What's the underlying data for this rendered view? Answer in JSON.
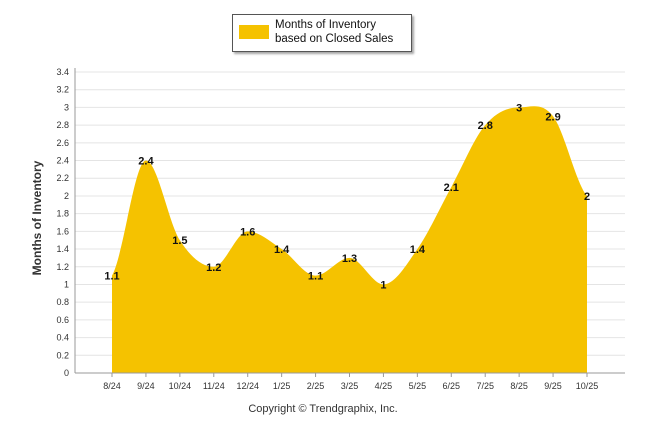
{
  "chart_data": {
    "type": "area",
    "title": "",
    "legend": {
      "label": "Months of Inventory based on Closed Sales",
      "placement": "top-center"
    },
    "categories": [
      "8/24",
      "9/24",
      "10/24",
      "11/24",
      "12/24",
      "1/25",
      "2/25",
      "3/25",
      "4/25",
      "5/25",
      "6/25",
      "7/25",
      "8/25",
      "9/25",
      "10/25"
    ],
    "series": [
      {
        "name": "Months of Inventory based on Closed Sales",
        "values": [
          1.1,
          2.4,
          1.5,
          1.2,
          1.6,
          1.4,
          1.1,
          1.3,
          1,
          1.4,
          2.1,
          2.8,
          3,
          2.9,
          2
        ]
      }
    ],
    "data_labels": [
      "1.1",
      "2.4",
      "1.5",
      "1.2",
      "1.6",
      "1.4",
      "1.1",
      "1.3",
      "1",
      "1.4",
      "2.1",
      "2.8",
      "3",
      "2.9",
      "2"
    ],
    "ylabel": "Months of Inventory",
    "xlabel": "",
    "ylim": [
      0,
      3.4
    ],
    "yticks": [
      "0",
      "0.2",
      "0.4",
      "0.6",
      "0.8",
      "1",
      "1.2",
      "1.4",
      "1.6",
      "1.8",
      "2",
      "2.2",
      "2.4",
      "2.6",
      "2.8",
      "3",
      "3.2",
      "3.4"
    ],
    "ytick_values": [
      0,
      0.2,
      0.4,
      0.6,
      0.8,
      1,
      1.2,
      1.4,
      1.6,
      1.8,
      2,
      2.2,
      2.4,
      2.6,
      2.8,
      3,
      3.2,
      3.4
    ],
    "grid": true,
    "colors": {
      "fill": "#F5C200",
      "grid": "#e4e4e4",
      "axis": "#999999"
    }
  },
  "footer": {
    "copyright": "Copyright © Trendgraphix, Inc."
  }
}
